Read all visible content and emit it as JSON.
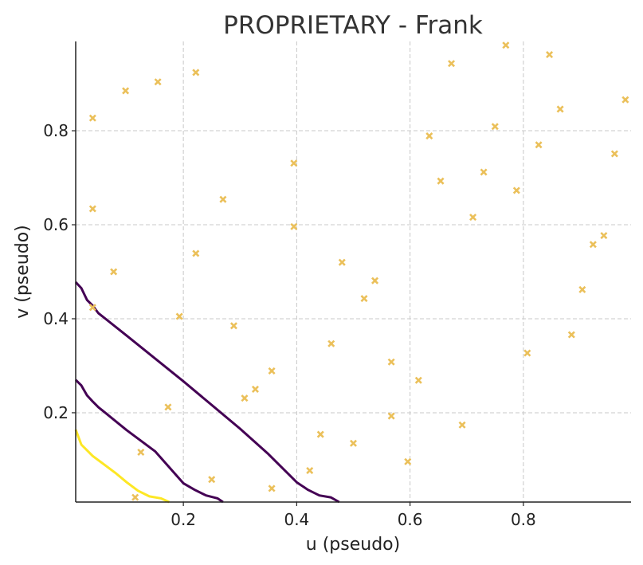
{
  "chart_data": {
    "type": "scatter",
    "title": "PROPRIETARY - Frank",
    "xlabel": "u (pseudo)",
    "ylabel": "v (pseudo)",
    "xlim": [
      0.01,
      0.99
    ],
    "ylim": [
      0.01,
      0.99
    ],
    "x_ticks": [
      0.2,
      0.4,
      0.6,
      0.8
    ],
    "x_tick_labels": [
      "0.2",
      "0.4",
      "0.6",
      "0.8"
    ],
    "y_ticks": [
      0.2,
      0.4,
      0.6,
      0.8
    ],
    "y_tick_labels": [
      "0.2",
      "0.4",
      "0.6",
      "0.8"
    ],
    "grid": true,
    "marker": "x",
    "marker_color": "#ebc05a",
    "points": [
      [
        0.04,
        0.827
      ],
      [
        0.098,
        0.885
      ],
      [
        0.155,
        0.904
      ],
      [
        0.222,
        0.924
      ],
      [
        0.04,
        0.634
      ],
      [
        0.077,
        0.5
      ],
      [
        0.04,
        0.424
      ],
      [
        0.193,
        0.405
      ],
      [
        0.222,
        0.539
      ],
      [
        0.27,
        0.654
      ],
      [
        0.289,
        0.385
      ],
      [
        0.395,
        0.731
      ],
      [
        0.395,
        0.596
      ],
      [
        0.48,
        0.52
      ],
      [
        0.519,
        0.443
      ],
      [
        0.538,
        0.481
      ],
      [
        0.461,
        0.347
      ],
      [
        0.567,
        0.308
      ],
      [
        0.173,
        0.212
      ],
      [
        0.308,
        0.231
      ],
      [
        0.327,
        0.25
      ],
      [
        0.356,
        0.289
      ],
      [
        0.125,
        0.116
      ],
      [
        0.115,
        0.02
      ],
      [
        0.25,
        0.058
      ],
      [
        0.356,
        0.039
      ],
      [
        0.423,
        0.077
      ],
      [
        0.442,
        0.154
      ],
      [
        0.5,
        0.135
      ],
      [
        0.567,
        0.193
      ],
      [
        0.596,
        0.096
      ],
      [
        0.615,
        0.269
      ],
      [
        0.634,
        0.789
      ],
      [
        0.654,
        0.693
      ],
      [
        0.673,
        0.943
      ],
      [
        0.711,
        0.616
      ],
      [
        0.73,
        0.712
      ],
      [
        0.75,
        0.809
      ],
      [
        0.769,
        0.982
      ],
      [
        0.788,
        0.673
      ],
      [
        0.807,
        0.327
      ],
      [
        0.827,
        0.77
      ],
      [
        0.846,
        0.962
      ],
      [
        0.865,
        0.846
      ],
      [
        0.885,
        0.366
      ],
      [
        0.904,
        0.462
      ],
      [
        0.923,
        0.558
      ],
      [
        0.942,
        0.577
      ],
      [
        0.961,
        0.751
      ],
      [
        0.98,
        0.866
      ],
      [
        0.692,
        0.174
      ]
    ],
    "contours": [
      {
        "color": "#440154",
        "points": [
          [
            0.01,
            0.478
          ],
          [
            0.02,
            0.465
          ],
          [
            0.03,
            0.44
          ],
          [
            0.04,
            0.428
          ],
          [
            0.05,
            0.412
          ],
          [
            0.1,
            0.364
          ],
          [
            0.2,
            0.267
          ],
          [
            0.3,
            0.166
          ],
          [
            0.35,
            0.112
          ],
          [
            0.4,
            0.052
          ],
          [
            0.42,
            0.036
          ],
          [
            0.44,
            0.024
          ],
          [
            0.46,
            0.02
          ],
          [
            0.475,
            0.01
          ]
        ]
      },
      {
        "color": "#440154",
        "points": [
          [
            0.01,
            0.27
          ],
          [
            0.02,
            0.258
          ],
          [
            0.03,
            0.237
          ],
          [
            0.04,
            0.224
          ],
          [
            0.05,
            0.212
          ],
          [
            0.1,
            0.163
          ],
          [
            0.15,
            0.118
          ],
          [
            0.2,
            0.05
          ],
          [
            0.22,
            0.036
          ],
          [
            0.24,
            0.024
          ],
          [
            0.26,
            0.018
          ],
          [
            0.27,
            0.01
          ]
        ]
      },
      {
        "color": "#fde725",
        "points": [
          [
            0.01,
            0.164
          ],
          [
            0.02,
            0.132
          ],
          [
            0.03,
            0.12
          ],
          [
            0.04,
            0.108
          ],
          [
            0.06,
            0.09
          ],
          [
            0.08,
            0.072
          ],
          [
            0.1,
            0.052
          ],
          [
            0.12,
            0.034
          ],
          [
            0.14,
            0.022
          ],
          [
            0.16,
            0.018
          ],
          [
            0.175,
            0.01
          ]
        ]
      }
    ]
  }
}
